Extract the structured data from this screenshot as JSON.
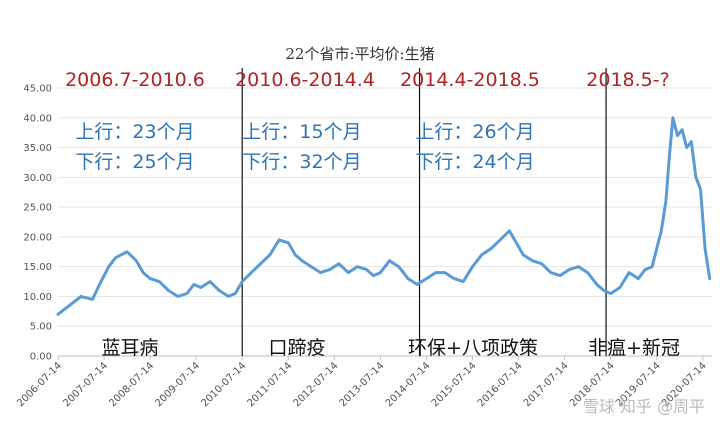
{
  "chart_data": {
    "type": "line",
    "title": "22个省市:平均价:生猪",
    "ylim": [
      0,
      45
    ],
    "yticks": [
      "0.00",
      "5.00",
      "10.00",
      "15.00",
      "20.00",
      "25.00",
      "30.00",
      "35.00",
      "40.00",
      "45.00"
    ],
    "xlim": [
      2006.5,
      2020.7
    ],
    "xtick_labels": [
      "2006-07-14",
      "2007-07-14",
      "2008-07-14",
      "2009-07-14",
      "2010-07-14",
      "2011-07-14",
      "2012-07-14",
      "2013-07-14",
      "2014-07-14",
      "2015-07-14",
      "2016-07-14",
      "2017-07-14",
      "2018-07-14",
      "2019-07-14",
      "2020-07-14"
    ],
    "grid": true,
    "line_color": "#5b9bd5",
    "series": [
      {
        "x": [
          2006.5,
          2006.75,
          2007.0,
          2007.25,
          2007.4,
          2007.6,
          2007.75,
          2008.0,
          2008.2,
          2008.35,
          2008.5,
          2008.7,
          2008.9,
          2009.1,
          2009.3,
          2009.45,
          2009.6,
          2009.8,
          2010.0,
          2010.2,
          2010.35,
          2010.5,
          2010.7,
          2010.9,
          2011.1,
          2011.3,
          2011.5,
          2011.65,
          2011.8,
          2012.0,
          2012.2,
          2012.4,
          2012.6,
          2012.8,
          2013.0,
          2013.2,
          2013.35,
          2013.5,
          2013.7,
          2013.9,
          2014.1,
          2014.3,
          2014.5,
          2014.7,
          2014.9,
          2015.1,
          2015.3,
          2015.5,
          2015.7,
          2015.9,
          2016.1,
          2016.3,
          2016.45,
          2016.6,
          2016.8,
          2017.0,
          2017.2,
          2017.4,
          2017.6,
          2017.8,
          2018.0,
          2018.2,
          2018.35,
          2018.5,
          2018.7,
          2018.9,
          2019.1,
          2019.25,
          2019.4,
          2019.5,
          2019.6,
          2019.7,
          2019.78,
          2019.85,
          2019.95,
          2020.05,
          2020.15,
          2020.25,
          2020.35,
          2020.45,
          2020.55,
          2020.65
        ],
        "y": [
          7,
          8.5,
          10,
          9.5,
          12,
          15,
          16.5,
          17.5,
          16,
          14,
          13,
          12.5,
          11,
          10,
          10.5,
          12,
          11.5,
          12.5,
          11,
          10,
          10.5,
          12.5,
          14,
          15.5,
          17,
          19.5,
          19,
          17,
          16,
          15,
          14,
          14.5,
          15.5,
          14,
          15,
          14.5,
          13.5,
          14,
          16,
          15,
          13,
          12,
          13,
          14,
          14,
          13,
          12.5,
          15,
          17,
          18,
          19.5,
          21,
          19,
          17,
          16,
          15.5,
          14,
          13.5,
          14.5,
          15,
          14,
          12,
          11,
          10.5,
          11.5,
          14,
          13,
          14.5,
          15,
          18,
          21,
          26,
          34,
          40,
          37,
          38,
          35,
          36,
          30,
          28,
          18,
          13
        ]
      }
    ],
    "period_labels": [
      "2006.7-2010.6",
      "2010.6-2014.4",
      "2014.4-2018.5",
      "2018.5-?"
    ],
    "up_labels": [
      "上行：23个月",
      "上行：15个月",
      "上行：26个月"
    ],
    "down_labels": [
      "下行：25个月",
      "下行：32个月",
      "下行：24个月"
    ],
    "cause_labels": [
      "蓝耳病",
      "口蹄疫",
      "环保+八项政策",
      "非瘟+新冠"
    ],
    "period_dividers": [
      2010.5,
      2014.35,
      2018.4
    ],
    "watermark": "雪球 知乎 @周平"
  }
}
